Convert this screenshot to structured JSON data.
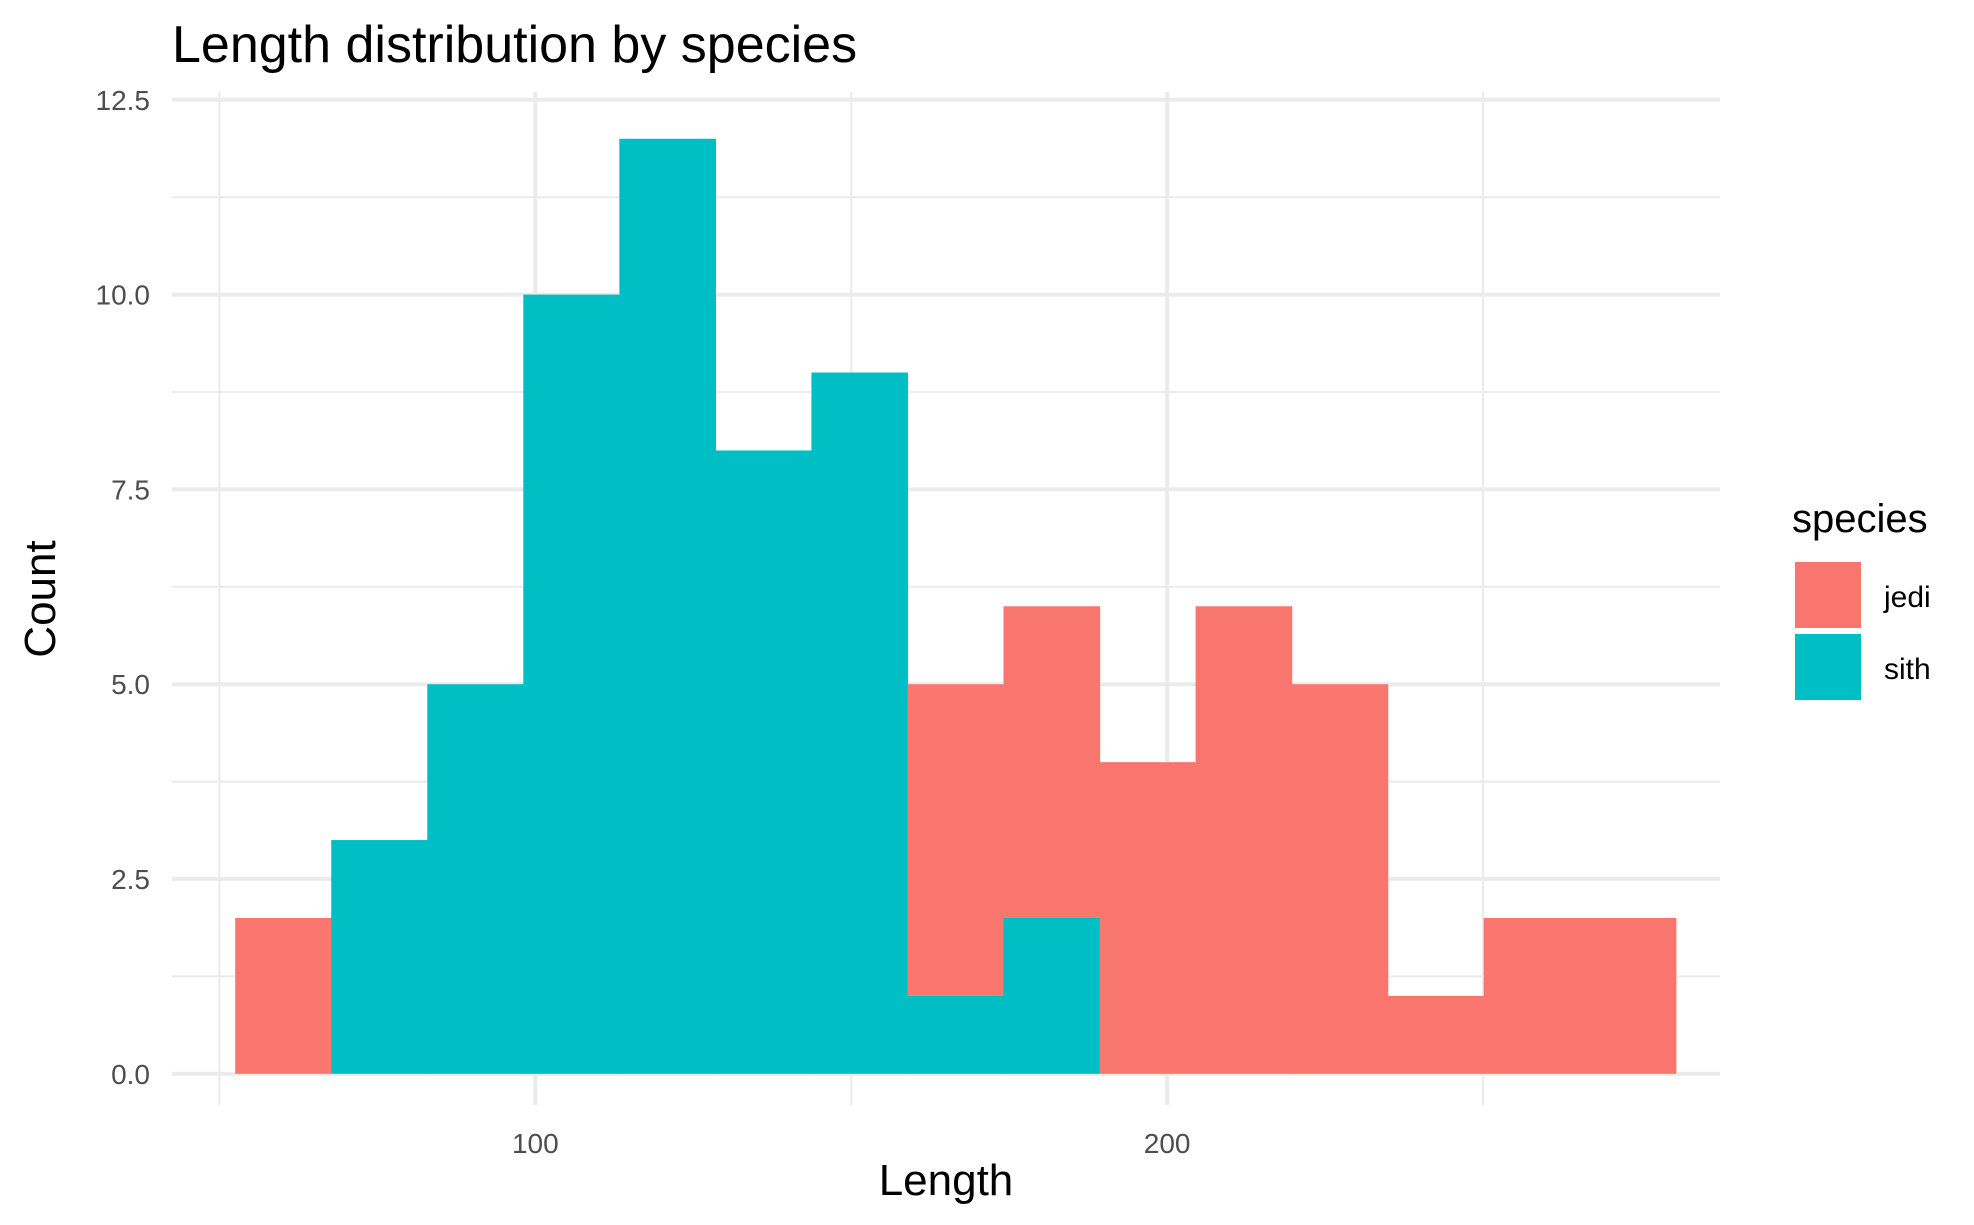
{
  "chart_data": {
    "type": "bar",
    "subtype": "histogram-stacked",
    "title": "Length distribution by species",
    "xlabel": "Length",
    "ylabel": "Count",
    "xlim": [
      42.5,
      287.5
    ],
    "ylim": [
      -0.4,
      12.6
    ],
    "x_ticks": [
      {
        "value": 100,
        "label": "100"
      },
      {
        "value": 200,
        "label": "200"
      }
    ],
    "x_minor_ticks": [
      50,
      150,
      250
    ],
    "y_ticks": [
      {
        "value": 0,
        "label": "0.0"
      },
      {
        "value": 2.5,
        "label": "2.5"
      },
      {
        "value": 5,
        "label": "5.0"
      },
      {
        "value": 7.5,
        "label": "7.5"
      },
      {
        "value": 10,
        "label": "10.0"
      },
      {
        "value": 12.5,
        "label": "12.5"
      }
    ],
    "y_minor_ticks": [
      1.25,
      3.75,
      6.25,
      8.75,
      11.25
    ],
    "grid": true,
    "bins": [
      [
        52.5,
        67.7
      ],
      [
        67.7,
        82.9
      ],
      [
        82.9,
        98.1
      ],
      [
        98.1,
        113.3
      ],
      [
        113.3,
        128.5
      ],
      [
        128.5,
        143.7
      ],
      [
        143.7,
        158.9
      ],
      [
        158.9,
        174.1
      ],
      [
        174.1,
        189.3
      ],
      [
        189.3,
        204.5
      ],
      [
        204.5,
        219.7
      ],
      [
        219.7,
        234.9
      ],
      [
        234.9,
        250.1
      ],
      [
        250.1,
        265.3
      ],
      [
        265.3,
        280.5
      ]
    ],
    "series": [
      {
        "name": "jedi",
        "color": "#f8766d",
        "values": [
          2,
          0,
          0,
          0,
          0,
          0,
          0,
          4,
          4,
          4,
          6,
          5,
          1,
          2,
          2
        ]
      },
      {
        "name": "sith",
        "color": "#00bfc4",
        "values": [
          0,
          3,
          5,
          10,
          12,
          8,
          9,
          1,
          2,
          0,
          0,
          0,
          0,
          0,
          0
        ]
      }
    ],
    "stacking": "jedi on top of sith",
    "legend": {
      "title": "species",
      "position": "right",
      "entries": [
        {
          "label": "jedi",
          "color": "#f8766d"
        },
        {
          "label": "sith",
          "color": "#00bfc4"
        }
      ]
    }
  }
}
